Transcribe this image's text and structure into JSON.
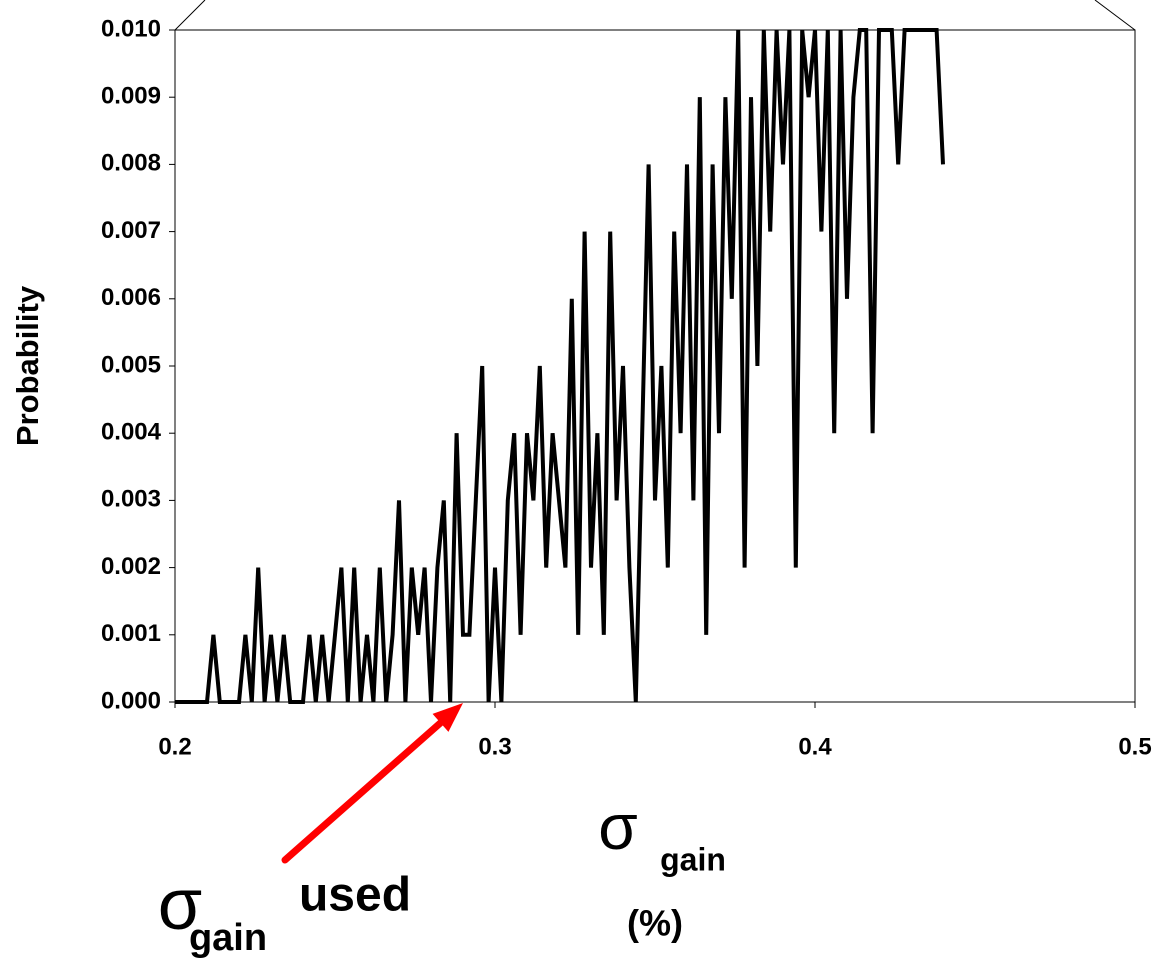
{
  "chart_data": {
    "type": "line",
    "y_label": "Probability",
    "x_label": {
      "symbol": "σ",
      "subscript": "gain",
      "unit": "(%)"
    },
    "annotation": {
      "symbol": "σ",
      "subscript": "gain",
      "text": "used",
      "x": 0.29,
      "color": "#ff0000"
    },
    "color": "#000000",
    "x": [
      0.2,
      0.202,
      0.204,
      0.206,
      0.208,
      0.21,
      0.212,
      0.214,
      0.216,
      0.218,
      0.22,
      0.222,
      0.224,
      0.226,
      0.228,
      0.23,
      0.232,
      0.234,
      0.236,
      0.238,
      0.24,
      0.242,
      0.244,
      0.246,
      0.248,
      0.25,
      0.252,
      0.254,
      0.256,
      0.258,
      0.26,
      0.262,
      0.264,
      0.266,
      0.268,
      0.27,
      0.272,
      0.274,
      0.276,
      0.278,
      0.28,
      0.282,
      0.284,
      0.286,
      0.288,
      0.29,
      0.292,
      0.294,
      0.296,
      0.298,
      0.3,
      0.302,
      0.304,
      0.306,
      0.308,
      0.31,
      0.312,
      0.314,
      0.316,
      0.318,
      0.32,
      0.322,
      0.324,
      0.326,
      0.328,
      0.33,
      0.332,
      0.334,
      0.336,
      0.338,
      0.34,
      0.342,
      0.344,
      0.346,
      0.348,
      0.35,
      0.352,
      0.354,
      0.356,
      0.358,
      0.36,
      0.362,
      0.364,
      0.366,
      0.368,
      0.37,
      0.372,
      0.374,
      0.376,
      0.378,
      0.38,
      0.382,
      0.384,
      0.386,
      0.388,
      0.39,
      0.392,
      0.394,
      0.396,
      0.398,
      0.4,
      0.402,
      0.404,
      0.406,
      0.408,
      0.41,
      0.412,
      0.414,
      0.416,
      0.418,
      0.42,
      0.424,
      0.426,
      0.428,
      0.43,
      0.438,
      0.44
    ],
    "values": [
      0,
      0,
      0,
      0,
      0,
      0,
      0.001,
      0,
      0,
      0,
      0,
      0.001,
      0,
      0.002,
      0,
      0.001,
      0,
      0.001,
      0,
      0,
      0,
      0.001,
      0,
      0.001,
      0,
      0.001,
      0.002,
      0,
      0.002,
      0,
      0.001,
      0,
      0.002,
      0,
      0.001,
      0.003,
      0,
      0.002,
      0.001,
      0.002,
      0,
      0.002,
      0.003,
      0,
      0.004,
      0.001,
      0.001,
      0.003,
      0.005,
      0,
      0.002,
      0,
      0.003,
      0.004,
      0.001,
      0.004,
      0.003,
      0.005,
      0.002,
      0.004,
      0.003,
      0.002,
      0.006,
      0.001,
      0.007,
      0.002,
      0.004,
      0.001,
      0.007,
      0.003,
      0.005,
      0.002,
      0,
      0.004,
      0.008,
      0.003,
      0.005,
      0.002,
      0.007,
      0.004,
      0.008,
      0.003,
      0.009,
      0.001,
      0.008,
      0.004,
      0.009,
      0.006,
      0.01,
      0.002,
      0.009,
      0.005,
      0.01,
      0.007,
      0.01,
      0.008,
      0.01,
      0.002,
      0.01,
      0.009,
      0.01,
      0.007,
      0.01,
      0.004,
      0.01,
      0.006,
      0.009,
      0.01,
      0.01,
      0.004,
      0.01,
      0.01,
      0.008,
      0.01,
      0.01,
      0.01,
      0.008
    ],
    "xlim": [
      0.2,
      0.5
    ],
    "xticks": [
      0.2,
      0.3,
      0.4,
      0.5
    ],
    "ylim": [
      0,
      0.01
    ],
    "yticks": [
      {
        "value": 0,
        "label": "0.000"
      },
      {
        "value": 0.001,
        "label": "0.001"
      },
      {
        "value": 0.002,
        "label": "0.002"
      },
      {
        "value": 0.003,
        "label": "0.003"
      },
      {
        "value": 0.004,
        "label": "0.004"
      },
      {
        "value": 0.005,
        "label": "0.005"
      },
      {
        "value": 0.006,
        "label": "0.006"
      },
      {
        "value": 0.007,
        "label": "0.007"
      },
      {
        "value": 0.008,
        "label": "0.008"
      },
      {
        "value": 0.009,
        "label": "0.009"
      },
      {
        "value": 0.01,
        "label": "0.010"
      }
    ]
  }
}
